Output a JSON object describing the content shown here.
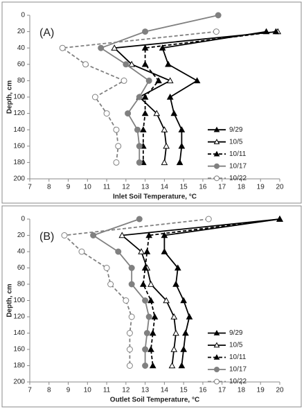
{
  "chart_data": [
    {
      "type": "line",
      "panel_label": "(A)",
      "xlabel": "Inlet Soil Temperature, °C",
      "ylabel": "Depth, cm",
      "xlim": [
        7,
        20
      ],
      "xticks": [
        7,
        8,
        9,
        10,
        11,
        12,
        13,
        14,
        15,
        16,
        17,
        18,
        19,
        20
      ],
      "ylim": [
        0,
        200
      ],
      "yticks": [
        0,
        20,
        40,
        60,
        80,
        100,
        120,
        140,
        160,
        180,
        200
      ],
      "y_reversed": true,
      "depths": [
        0,
        20,
        40,
        60,
        80,
        100,
        120,
        140,
        160,
        180
      ],
      "legend": "right",
      "series": [
        {
          "name": "9/29",
          "color": "#000000",
          "marker": "triangle",
          "filled": true,
          "dashed": false,
          "values": [
            null,
            19.3,
            13.9,
            14.2,
            15.7,
            14.3,
            14.5,
            14.9,
            14.9,
            14.8
          ]
        },
        {
          "name": "10/5",
          "color": "#000000",
          "marker": "triangle",
          "filled": false,
          "dashed": false,
          "values": [
            null,
            19.9,
            11.4,
            12.3,
            14.3,
            12.7,
            13.6,
            14.0,
            14.1,
            14.0
          ]
        },
        {
          "name": "10/11",
          "color": "#000000",
          "marker": "triangle",
          "filled": true,
          "dashed": true,
          "values": [
            null,
            19.8,
            13.0,
            13.0,
            13.7,
            13.0,
            13.0,
            12.9,
            12.9,
            12.9
          ]
        },
        {
          "name": "10/17",
          "color": "#808080",
          "marker": "circle",
          "filled": true,
          "dashed": false,
          "values": [
            16.8,
            13.0,
            10.7,
            12.0,
            13.2,
            12.7,
            12.1,
            12.6,
            12.7,
            12.7
          ]
        },
        {
          "name": "10/22",
          "color": "#808080",
          "marker": "circle",
          "filled": false,
          "dashed": true,
          "values": [
            null,
            16.7,
            8.7,
            9.9,
            11.9,
            10.4,
            11.0,
            11.5,
            11.6,
            11.5
          ]
        }
      ]
    },
    {
      "type": "line",
      "panel_label": "(B)",
      "xlabel": "Outlet Soil Temperature, °C",
      "ylabel": "Depth, cm",
      "xlim": [
        7,
        20
      ],
      "xticks": [
        7,
        8,
        9,
        10,
        11,
        12,
        13,
        14,
        15,
        16,
        17,
        18,
        19,
        20
      ],
      "ylim": [
        0,
        200
      ],
      "yticks": [
        0,
        20,
        40,
        60,
        80,
        100,
        120,
        140,
        160,
        180,
        200
      ],
      "y_reversed": true,
      "depths": [
        0,
        20,
        40,
        60,
        80,
        100,
        120,
        140,
        160,
        180
      ],
      "legend": "right",
      "series": [
        {
          "name": "9/29",
          "color": "#000000",
          "marker": "triangle",
          "filled": true,
          "dashed": false,
          "values": [
            20,
            14.0,
            14.0,
            14.7,
            14.6,
            15.0,
            15.3,
            15.1,
            15.0,
            14.9
          ]
        },
        {
          "name": "10/5",
          "color": "#000000",
          "marker": "triangle",
          "filled": false,
          "dashed": false,
          "values": [
            20,
            11.8,
            12.8,
            13.1,
            13.3,
            14.1,
            14.5,
            14.6,
            14.5,
            14.4
          ]
        },
        {
          "name": "10/11",
          "color": "#000000",
          "marker": "triangle",
          "filled": true,
          "dashed": true,
          "values": [
            20,
            13.2,
            13.1,
            13.0,
            12.9,
            13.3,
            13.5,
            13.4,
            13.3,
            13.4
          ]
        },
        {
          "name": "10/17",
          "color": "#808080",
          "marker": "circle",
          "filled": true,
          "dashed": false,
          "values": [
            12.7,
            10.3,
            11.6,
            12.3,
            12.3,
            13.0,
            13.2,
            13.1,
            13.0,
            13.0
          ]
        },
        {
          "name": "10/22",
          "color": "#808080",
          "marker": "circle",
          "filled": false,
          "dashed": true,
          "values": [
            16.3,
            8.8,
            9.7,
            11.0,
            11.2,
            12.0,
            12.3,
            12.2,
            12.2,
            12.2
          ]
        }
      ]
    }
  ]
}
